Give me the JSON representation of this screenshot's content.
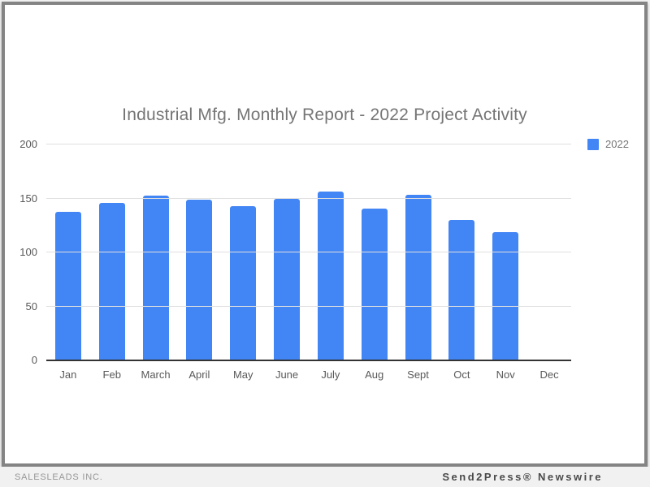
{
  "title": "Industrial Mfg. Monthly Report - 2022 Project Activity",
  "legend": {
    "label": "2022",
    "color": "#4285f4"
  },
  "footer": {
    "left": "SALESLEADS INC.",
    "right": "Send2Press® Newswire"
  },
  "colors": {
    "bar": "#4285f4",
    "gridline": "#e0e0e0",
    "baseline": "#333333",
    "title_text": "#757575",
    "axis_text": "#595959",
    "frame_border": "#848484",
    "page_background": "#f1f1f1"
  },
  "chart_data": {
    "type": "bar",
    "title": "Industrial Mfg. Monthly Report - 2022 Project Activity",
    "categories": [
      "Jan",
      "Feb",
      "March",
      "April",
      "May",
      "June",
      "July",
      "Aug",
      "Sept",
      "Oct",
      "Nov",
      "Dec"
    ],
    "series": [
      {
        "name": "2022",
        "color": "#4285f4",
        "values": [
          137,
          145,
          152,
          148,
          142,
          149,
          156,
          140,
          153,
          129,
          118,
          null
        ]
      }
    ],
    "xlabel": "",
    "ylabel": "",
    "ylim": [
      0,
      200
    ],
    "yticks": [
      0,
      50,
      100,
      150,
      200
    ],
    "grid": true,
    "legend_position": "top-right"
  }
}
